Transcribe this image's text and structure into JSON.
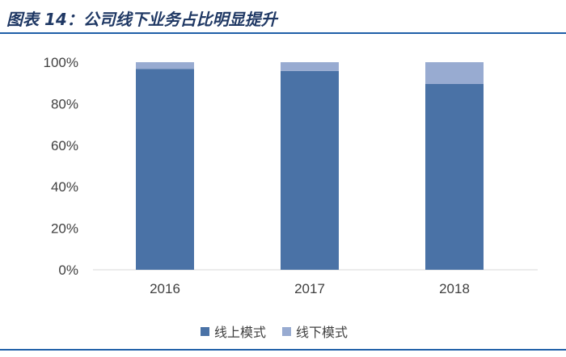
{
  "title": "图表 14：公司线下业务占比明显提升",
  "chart_data": {
    "type": "bar",
    "stacked": true,
    "categories": [
      "2016",
      "2017",
      "2018"
    ],
    "series": [
      {
        "name": "线上模式",
        "values": [
          96.8,
          95.8,
          89.5
        ],
        "color": "#4a72a6"
      },
      {
        "name": "线下模式",
        "values": [
          3.2,
          4.2,
          10.5
        ],
        "color": "#98abd1"
      }
    ],
    "ylim": [
      0,
      100
    ],
    "yticks": [
      "0%",
      "20%",
      "40%",
      "60%",
      "80%",
      "100%"
    ],
    "grid": false,
    "legend_position": "bottom"
  }
}
